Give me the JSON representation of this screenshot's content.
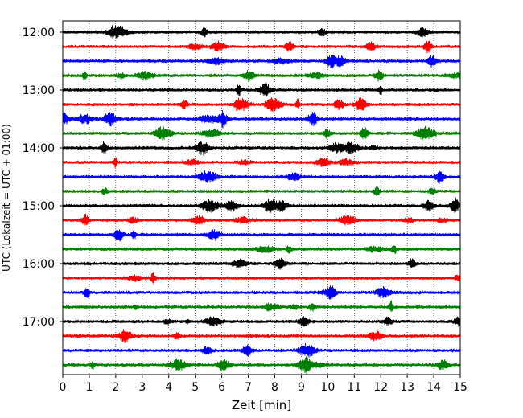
{
  "chart_data": {
    "type": "line",
    "title": "",
    "xlabel": "Zeit  [min]",
    "ylabel": "UTC (Lokalzeit = UTC + 01:00)",
    "xlim": [
      0,
      15
    ],
    "x_ticks": [
      "0",
      "1",
      "2",
      "3",
      "4",
      "5",
      "6",
      "7",
      "8",
      "9",
      "10",
      "11",
      "12",
      "13",
      "14",
      "15"
    ],
    "y_ticks": [
      "12:00",
      "13:00",
      "14:00",
      "15:00",
      "16:00",
      "17:00"
    ],
    "x_grid": true,
    "trace_colors": [
      "#000000",
      "#ff0000",
      "#0000ff",
      "#008000"
    ],
    "series": [
      {
        "start": "12:00",
        "color_index": 0
      },
      {
        "start": "12:15",
        "color_index": 1
      },
      {
        "start": "12:30",
        "color_index": 2
      },
      {
        "start": "12:45",
        "color_index": 3
      },
      {
        "start": "13:00",
        "color_index": 0
      },
      {
        "start": "13:15",
        "color_index": 1
      },
      {
        "start": "13:30",
        "color_index": 2
      },
      {
        "start": "13:45",
        "color_index": 3
      },
      {
        "start": "14:00",
        "color_index": 0
      },
      {
        "start": "14:15",
        "color_index": 1
      },
      {
        "start": "14:30",
        "color_index": 2
      },
      {
        "start": "14:45",
        "color_index": 3
      },
      {
        "start": "15:00",
        "color_index": 0
      },
      {
        "start": "15:15",
        "color_index": 1
      },
      {
        "start": "15:30",
        "color_index": 2
      },
      {
        "start": "15:45",
        "color_index": 3
      },
      {
        "start": "16:00",
        "color_index": 0
      },
      {
        "start": "16:15",
        "color_index": 1
      },
      {
        "start": "16:30",
        "color_index": 2
      },
      {
        "start": "16:45",
        "color_index": 3
      },
      {
        "start": "17:00",
        "color_index": 0
      },
      {
        "start": "17:15",
        "color_index": 1
      },
      {
        "start": "17:30",
        "color_index": 2
      },
      {
        "start": "17:45",
        "color_index": 3
      }
    ]
  }
}
